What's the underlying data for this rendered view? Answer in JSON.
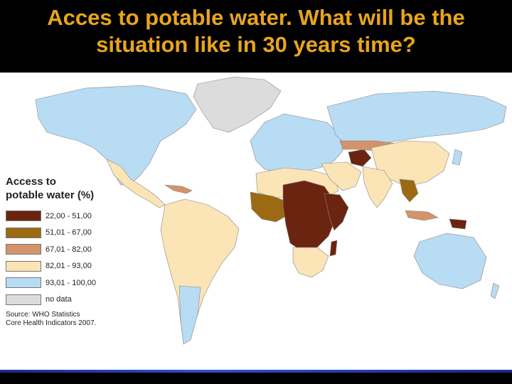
{
  "title_lines": [
    "Acces to potable water. What will be the",
    "situation like in 30 years time?"
  ],
  "legend": {
    "title_lines": [
      "Access to",
      "potable water (%)"
    ],
    "items": [
      {
        "label": "22,00 - 51,00",
        "color": "#6b2410"
      },
      {
        "label": "51,01 - 67,00",
        "color": "#9b6a12"
      },
      {
        "label": "67,01 - 82,00",
        "color": "#d4936a"
      },
      {
        "label": "82,01 - 93,00",
        "color": "#fbe4b6"
      },
      {
        "label": "93,01 - 100,00",
        "color": "#b8dcf4"
      },
      {
        "label": "no data",
        "color": "#dcdcdc"
      }
    ]
  },
  "source_lines": [
    "Source: WHO Statistics",
    "Core Health Indicators 2007."
  ],
  "colors": {
    "title": "#e8a51c",
    "background_title": "#000000",
    "map_background": "#ffffff",
    "bottom_accent": "#2d4fd0"
  }
}
